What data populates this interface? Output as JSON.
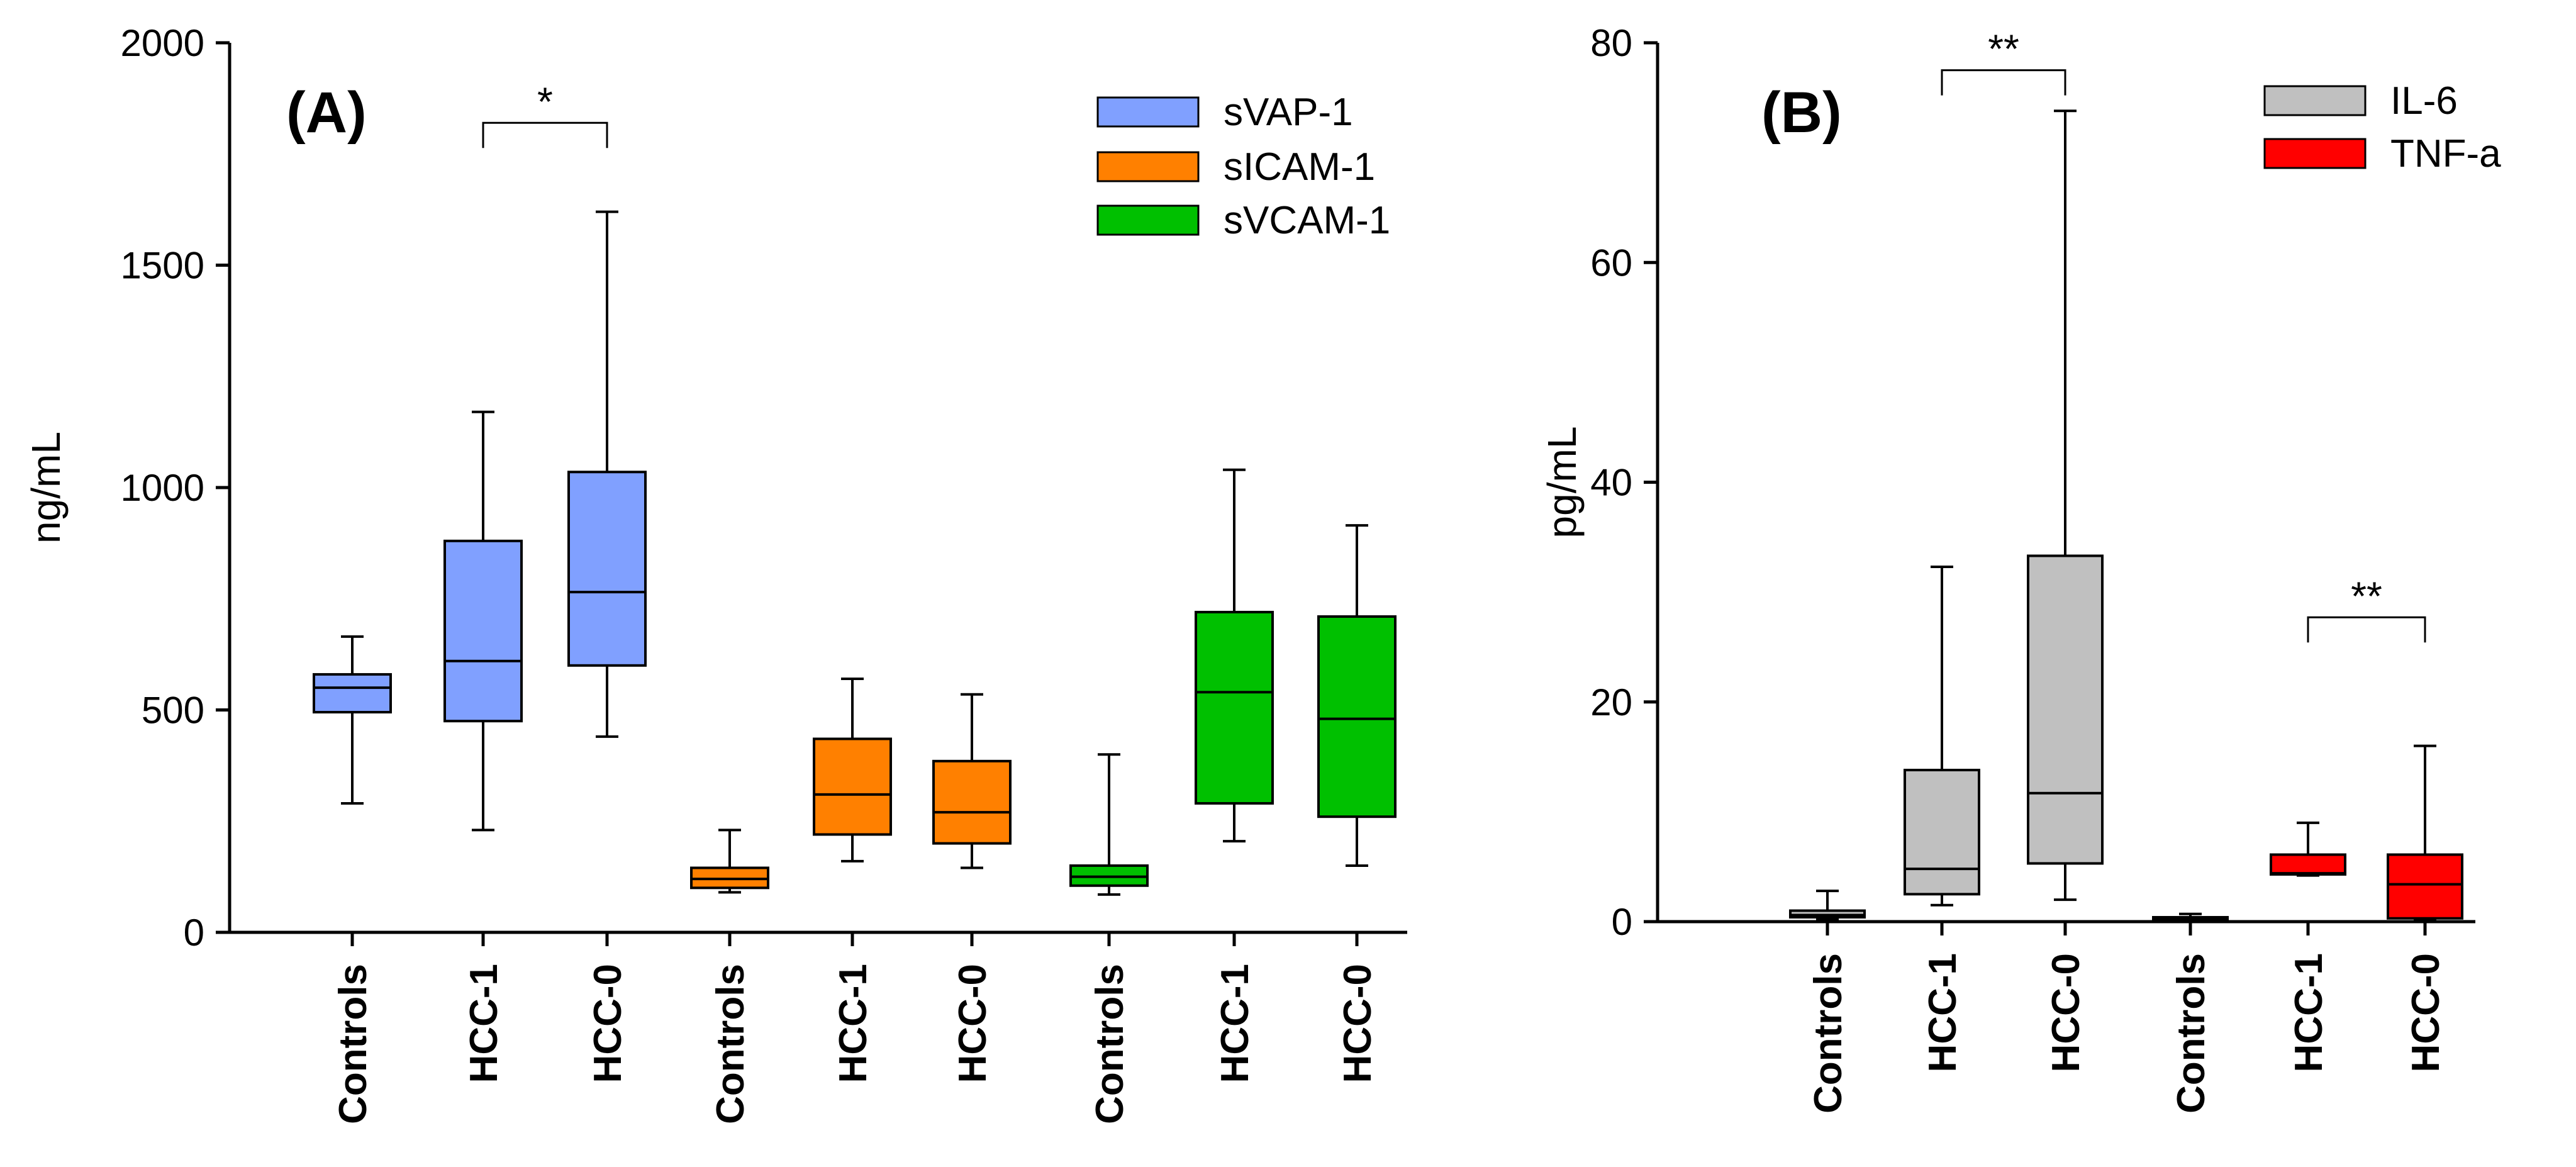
{
  "chart_data": [
    {
      "type": "boxplot",
      "panel_label": "(A)",
      "ylabel": "ng/mL",
      "ylim": [
        0,
        2000
      ],
      "yticks": [
        "0",
        "500",
        "1000",
        "1500",
        "2000"
      ],
      "legend": {
        "position": "top-right",
        "entries": [
          {
            "label": "sVAP-1",
            "color": "#80a0ff"
          },
          {
            "label": "sICAM-1",
            "color": "#ff8000"
          },
          {
            "label": "sVCAM-1",
            "color": "#00c000"
          }
        ]
      },
      "categories": [
        "Controls",
        "HCC-1",
        "HCC-0",
        "Controls",
        "HCC-1",
        "HCC-0",
        "Controls",
        "HCC-1",
        "HCC-0"
      ],
      "boxes": [
        {
          "series": "sVAP-1",
          "group": "Controls",
          "min": 290,
          "q1": 495,
          "median": 550,
          "q3": 580,
          "max": 665,
          "color": "#80a0ff"
        },
        {
          "series": "sVAP-1",
          "group": "HCC-1",
          "min": 230,
          "q1": 475,
          "median": 610,
          "q3": 880,
          "max": 1170,
          "color": "#80a0ff"
        },
        {
          "series": "sVAP-1",
          "group": "HCC-0",
          "min": 440,
          "q1": 600,
          "median": 765,
          "q3": 1035,
          "max": 1620,
          "color": "#80a0ff"
        },
        {
          "series": "sICAM-1",
          "group": "Controls",
          "min": 90,
          "q1": 100,
          "median": 120,
          "q3": 145,
          "max": 230,
          "color": "#ff8000"
        },
        {
          "series": "sICAM-1",
          "group": "HCC-1",
          "min": 160,
          "q1": 220,
          "median": 310,
          "q3": 435,
          "max": 570,
          "color": "#ff8000"
        },
        {
          "series": "sICAM-1",
          "group": "HCC-0",
          "min": 145,
          "q1": 200,
          "median": 270,
          "q3": 385,
          "max": 535,
          "color": "#ff8000"
        },
        {
          "series": "sVCAM-1",
          "group": "Controls",
          "min": 85,
          "q1": 105,
          "median": 125,
          "q3": 150,
          "max": 400,
          "color": "#00c000"
        },
        {
          "series": "sVCAM-1",
          "group": "HCC-1",
          "min": 205,
          "q1": 290,
          "median": 540,
          "q3": 720,
          "max": 1040,
          "color": "#00c000"
        },
        {
          "series": "sVCAM-1",
          "group": "HCC-0",
          "min": 150,
          "q1": 260,
          "median": 480,
          "q3": 710,
          "max": 915,
          "color": "#00c000"
        }
      ],
      "significance": [
        {
          "from": 1,
          "to": 2,
          "y": 1820,
          "label": "*"
        }
      ]
    },
    {
      "type": "boxplot",
      "panel_label": "(B)",
      "ylabel": "pg/mL",
      "ylim": [
        0,
        80
      ],
      "yticks": [
        "0",
        "20",
        "40",
        "60",
        "80"
      ],
      "legend": {
        "position": "top-right",
        "entries": [
          {
            "label": "IL-6",
            "color": "#c0c0c0"
          },
          {
            "label": "TNF-a",
            "color": "#ff0000"
          }
        ]
      },
      "categories": [
        "Controls",
        "HCC-1",
        "HCC-0",
        "Controls",
        "HCC-1",
        "HCC-0"
      ],
      "boxes": [
        {
          "series": "IL-6",
          "group": "Controls",
          "min": 0.2,
          "q1": 0.4,
          "median": 0.6,
          "q3": 1.0,
          "max": 2.8,
          "color": "#c0c0c0"
        },
        {
          "series": "IL-6",
          "group": "HCC-1",
          "min": 1.5,
          "q1": 2.5,
          "median": 4.8,
          "q3": 13.8,
          "max": 32.3,
          "color": "#c0c0c0"
        },
        {
          "series": "IL-6",
          "group": "HCC-0",
          "min": 2.0,
          "q1": 5.3,
          "median": 11.7,
          "q3": 33.3,
          "max": 73.8,
          "color": "#c0c0c0"
        },
        {
          "series": "TNF-a",
          "group": "Controls",
          "min": 0.1,
          "q1": 0.2,
          "median": 0.3,
          "q3": 0.4,
          "max": 0.7,
          "color": "#ff0000"
        },
        {
          "series": "TNF-a",
          "group": "HCC-1",
          "min": 4.2,
          "q1": 4.3,
          "median": 4.4,
          "q3": 6.1,
          "max": 9.0,
          "color": "#ff0000"
        },
        {
          "series": "TNF-a",
          "group": "HCC-0",
          "min": 0.2,
          "q1": 0.3,
          "median": 3.4,
          "q3": 6.1,
          "max": 16.0,
          "color": "#ff0000"
        }
      ],
      "significance": [
        {
          "from": 1,
          "to": 2,
          "y": 77.5,
          "label": "**"
        },
        {
          "from": 4,
          "to": 5,
          "y": 27.7,
          "label": "**"
        }
      ]
    }
  ]
}
